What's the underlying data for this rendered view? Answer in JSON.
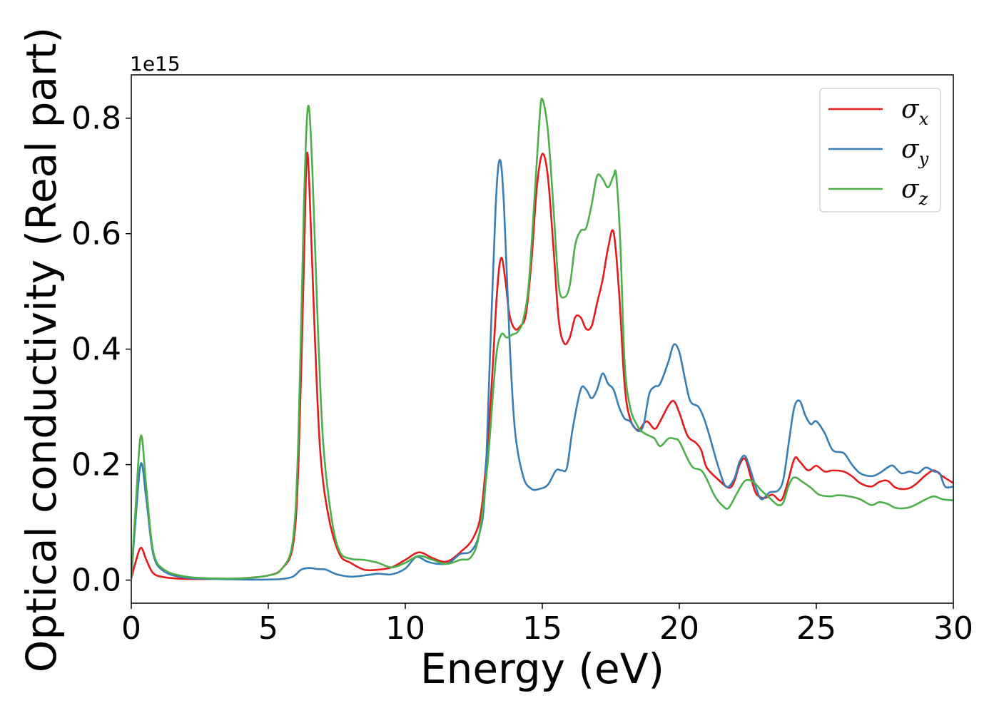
{
  "chart_data": {
    "type": "line",
    "title": "",
    "xlabel": "Energy (eV)",
    "ylabel": "Optical conductivity (Real part)",
    "y_offset_label": "1e15",
    "xlim": [
      0,
      30
    ],
    "ylim": [
      -0.04,
      0.875
    ],
    "x_ticks": [
      "0",
      "5",
      "10",
      "15",
      "20",
      "25",
      "30"
    ],
    "y_ticks": [
      "0.0",
      "0.2",
      "0.4",
      "0.6",
      "0.8"
    ],
    "grid": false,
    "legend_position": "top-right",
    "series": [
      {
        "name": "σx",
        "symbol": "σ",
        "subscript": "x",
        "color": "#e41a1c",
        "points": [
          [
            0,
            0.003
          ],
          [
            0.15,
            0.03
          ],
          [
            0.35,
            0.056
          ],
          [
            0.55,
            0.035
          ],
          [
            0.8,
            0.012
          ],
          [
            1.2,
            0.005
          ],
          [
            2,
            0.002
          ],
          [
            3,
            0.002
          ],
          [
            4,
            0.003
          ],
          [
            5,
            0.008
          ],
          [
            5.5,
            0.02
          ],
          [
            5.9,
            0.06
          ],
          [
            6.1,
            0.2
          ],
          [
            6.3,
            0.55
          ],
          [
            6.4,
            0.732
          ],
          [
            6.5,
            0.68
          ],
          [
            6.7,
            0.42
          ],
          [
            6.9,
            0.22
          ],
          [
            7.2,
            0.11
          ],
          [
            7.6,
            0.045
          ],
          [
            8,
            0.03
          ],
          [
            8.5,
            0.018
          ],
          [
            9,
            0.018
          ],
          [
            9.5,
            0.022
          ],
          [
            10,
            0.035
          ],
          [
            10.5,
            0.048
          ],
          [
            11,
            0.038
          ],
          [
            11.5,
            0.032
          ],
          [
            12,
            0.048
          ],
          [
            12.5,
            0.075
          ],
          [
            12.8,
            0.13
          ],
          [
            13.1,
            0.3
          ],
          [
            13.35,
            0.5
          ],
          [
            13.5,
            0.558
          ],
          [
            13.65,
            0.52
          ],
          [
            13.8,
            0.46
          ],
          [
            14,
            0.435
          ],
          [
            14.2,
            0.44
          ],
          [
            14.4,
            0.46
          ],
          [
            14.6,
            0.55
          ],
          [
            14.8,
            0.68
          ],
          [
            15,
            0.738
          ],
          [
            15.2,
            0.7
          ],
          [
            15.4,
            0.58
          ],
          [
            15.6,
            0.45
          ],
          [
            15.8,
            0.41
          ],
          [
            16,
            0.42
          ],
          [
            16.2,
            0.455
          ],
          [
            16.4,
            0.455
          ],
          [
            16.6,
            0.435
          ],
          [
            16.8,
            0.44
          ],
          [
            17,
            0.48
          ],
          [
            17.2,
            0.52
          ],
          [
            17.4,
            0.575
          ],
          [
            17.6,
            0.603
          ],
          [
            17.8,
            0.5
          ],
          [
            18,
            0.34
          ],
          [
            18.2,
            0.28
          ],
          [
            18.5,
            0.26
          ],
          [
            18.8,
            0.275
          ],
          [
            19.1,
            0.262
          ],
          [
            19.3,
            0.275
          ],
          [
            19.6,
            0.302
          ],
          [
            19.8,
            0.31
          ],
          [
            20,
            0.29
          ],
          [
            20.3,
            0.25
          ],
          [
            20.6,
            0.238
          ],
          [
            20.8,
            0.225
          ],
          [
            21,
            0.195
          ],
          [
            21.4,
            0.175
          ],
          [
            21.8,
            0.16
          ],
          [
            22,
            0.17
          ],
          [
            22.2,
            0.2
          ],
          [
            22.4,
            0.21
          ],
          [
            22.6,
            0.18
          ],
          [
            22.8,
            0.15
          ],
          [
            23.1,
            0.142
          ],
          [
            23.4,
            0.148
          ],
          [
            23.7,
            0.138
          ],
          [
            23.9,
            0.16
          ],
          [
            24.2,
            0.21
          ],
          [
            24.4,
            0.205
          ],
          [
            24.7,
            0.19
          ],
          [
            25,
            0.198
          ],
          [
            25.3,
            0.188
          ],
          [
            25.6,
            0.19
          ],
          [
            26,
            0.188
          ],
          [
            26.3,
            0.18
          ],
          [
            26.6,
            0.168
          ],
          [
            27,
            0.162
          ],
          [
            27.3,
            0.17
          ],
          [
            27.6,
            0.172
          ],
          [
            27.9,
            0.16
          ],
          [
            28.3,
            0.158
          ],
          [
            28.6,
            0.165
          ],
          [
            29,
            0.182
          ],
          [
            29.3,
            0.19
          ],
          [
            29.6,
            0.18
          ],
          [
            30,
            0.168
          ]
        ]
      },
      {
        "name": "σy",
        "symbol": "σ",
        "subscript": "y",
        "color": "#377eb8",
        "points": [
          [
            0,
            0.003
          ],
          [
            0.15,
            0.1
          ],
          [
            0.35,
            0.202
          ],
          [
            0.55,
            0.14
          ],
          [
            0.8,
            0.045
          ],
          [
            1.2,
            0.015
          ],
          [
            2,
            0.004
          ],
          [
            3,
            0.002
          ],
          [
            4,
            0.001
          ],
          [
            5,
            0.001
          ],
          [
            5.5,
            0.002
          ],
          [
            5.9,
            0.006
          ],
          [
            6.2,
            0.018
          ],
          [
            6.5,
            0.021
          ],
          [
            6.8,
            0.019
          ],
          [
            7.1,
            0.018
          ],
          [
            7.5,
            0.01
          ],
          [
            8,
            0.006
          ],
          [
            8.5,
            0.008
          ],
          [
            9,
            0.011
          ],
          [
            9.5,
            0.01
          ],
          [
            10,
            0.02
          ],
          [
            10.4,
            0.04
          ],
          [
            10.8,
            0.032
          ],
          [
            11.2,
            0.028
          ],
          [
            11.6,
            0.03
          ],
          [
            12,
            0.045
          ],
          [
            12.4,
            0.05
          ],
          [
            12.7,
            0.08
          ],
          [
            12.9,
            0.15
          ],
          [
            13.1,
            0.4
          ],
          [
            13.3,
            0.65
          ],
          [
            13.45,
            0.728
          ],
          [
            13.6,
            0.65
          ],
          [
            13.8,
            0.42
          ],
          [
            14,
            0.26
          ],
          [
            14.3,
            0.18
          ],
          [
            14.6,
            0.158
          ],
          [
            14.9,
            0.158
          ],
          [
            15.2,
            0.165
          ],
          [
            15.5,
            0.19
          ],
          [
            15.7,
            0.19
          ],
          [
            15.9,
            0.195
          ],
          [
            16.1,
            0.26
          ],
          [
            16.4,
            0.33
          ],
          [
            16.6,
            0.33
          ],
          [
            16.8,
            0.315
          ],
          [
            17,
            0.33
          ],
          [
            17.2,
            0.358
          ],
          [
            17.4,
            0.34
          ],
          [
            17.6,
            0.33
          ],
          [
            17.8,
            0.3
          ],
          [
            18,
            0.28
          ],
          [
            18.2,
            0.275
          ],
          [
            18.5,
            0.258
          ],
          [
            18.7,
            0.27
          ],
          [
            18.9,
            0.322
          ],
          [
            19.1,
            0.335
          ],
          [
            19.3,
            0.34
          ],
          [
            19.6,
            0.378
          ],
          [
            19.8,
            0.408
          ],
          [
            20,
            0.395
          ],
          [
            20.2,
            0.35
          ],
          [
            20.4,
            0.31
          ],
          [
            20.7,
            0.3
          ],
          [
            20.9,
            0.28
          ],
          [
            21.1,
            0.25
          ],
          [
            21.4,
            0.2
          ],
          [
            21.7,
            0.162
          ],
          [
            22,
            0.175
          ],
          [
            22.2,
            0.205
          ],
          [
            22.4,
            0.215
          ],
          [
            22.6,
            0.19
          ],
          [
            22.8,
            0.16
          ],
          [
            23,
            0.14
          ],
          [
            23.3,
            0.152
          ],
          [
            23.6,
            0.155
          ],
          [
            23.8,
            0.175
          ],
          [
            24,
            0.24
          ],
          [
            24.2,
            0.3
          ],
          [
            24.4,
            0.31
          ],
          [
            24.6,
            0.285
          ],
          [
            24.8,
            0.27
          ],
          [
            25,
            0.275
          ],
          [
            25.3,
            0.255
          ],
          [
            25.6,
            0.225
          ],
          [
            26,
            0.22
          ],
          [
            26.3,
            0.2
          ],
          [
            26.6,
            0.185
          ],
          [
            27,
            0.18
          ],
          [
            27.3,
            0.185
          ],
          [
            27.6,
            0.195
          ],
          [
            27.8,
            0.198
          ],
          [
            28.1,
            0.185
          ],
          [
            28.4,
            0.188
          ],
          [
            28.7,
            0.185
          ],
          [
            29,
            0.195
          ],
          [
            29.3,
            0.188
          ],
          [
            29.5,
            0.185
          ],
          [
            29.7,
            0.162
          ],
          [
            30,
            0.162
          ]
        ]
      },
      {
        "name": "σz",
        "symbol": "σ",
        "subscript": "z",
        "color": "#4daf4a",
        "points": [
          [
            0,
            0.003
          ],
          [
            0.15,
            0.12
          ],
          [
            0.35,
            0.25
          ],
          [
            0.55,
            0.16
          ],
          [
            0.8,
            0.05
          ],
          [
            1.2,
            0.018
          ],
          [
            2,
            0.006
          ],
          [
            3,
            0.003
          ],
          [
            4,
            0.003
          ],
          [
            5,
            0.008
          ],
          [
            5.5,
            0.02
          ],
          [
            5.9,
            0.07
          ],
          [
            6.1,
            0.25
          ],
          [
            6.3,
            0.65
          ],
          [
            6.45,
            0.82
          ],
          [
            6.6,
            0.72
          ],
          [
            6.8,
            0.45
          ],
          [
            7,
            0.24
          ],
          [
            7.3,
            0.11
          ],
          [
            7.6,
            0.05
          ],
          [
            8,
            0.037
          ],
          [
            8.5,
            0.035
          ],
          [
            9,
            0.03
          ],
          [
            9.5,
            0.022
          ],
          [
            10,
            0.03
          ],
          [
            10.5,
            0.042
          ],
          [
            11,
            0.035
          ],
          [
            11.5,
            0.028
          ],
          [
            12,
            0.035
          ],
          [
            12.4,
            0.04
          ],
          [
            12.7,
            0.08
          ],
          [
            13,
            0.2
          ],
          [
            13.3,
            0.38
          ],
          [
            13.5,
            0.425
          ],
          [
            13.7,
            0.42
          ],
          [
            13.9,
            0.425
          ],
          [
            14.1,
            0.43
          ],
          [
            14.3,
            0.45
          ],
          [
            14.5,
            0.51
          ],
          [
            14.7,
            0.65
          ],
          [
            14.9,
            0.8
          ],
          [
            15,
            0.833
          ],
          [
            15.2,
            0.78
          ],
          [
            15.4,
            0.65
          ],
          [
            15.6,
            0.51
          ],
          [
            15.8,
            0.49
          ],
          [
            16,
            0.51
          ],
          [
            16.2,
            0.58
          ],
          [
            16.4,
            0.605
          ],
          [
            16.6,
            0.61
          ],
          [
            16.8,
            0.65
          ],
          [
            17,
            0.7
          ],
          [
            17.2,
            0.695
          ],
          [
            17.4,
            0.68
          ],
          [
            17.6,
            0.7
          ],
          [
            17.7,
            0.7
          ],
          [
            17.85,
            0.58
          ],
          [
            18,
            0.38
          ],
          [
            18.2,
            0.3
          ],
          [
            18.5,
            0.265
          ],
          [
            18.7,
            0.255
          ],
          [
            18.9,
            0.25
          ],
          [
            19.1,
            0.245
          ],
          [
            19.3,
            0.232
          ],
          [
            19.6,
            0.245
          ],
          [
            19.8,
            0.245
          ],
          [
            20,
            0.24
          ],
          [
            20.3,
            0.21
          ],
          [
            20.5,
            0.195
          ],
          [
            20.8,
            0.19
          ],
          [
            21,
            0.175
          ],
          [
            21.3,
            0.145
          ],
          [
            21.6,
            0.128
          ],
          [
            21.8,
            0.125
          ],
          [
            22.1,
            0.15
          ],
          [
            22.4,
            0.172
          ],
          [
            22.7,
            0.17
          ],
          [
            23,
            0.155
          ],
          [
            23.3,
            0.142
          ],
          [
            23.6,
            0.13
          ],
          [
            23.8,
            0.135
          ],
          [
            24,
            0.165
          ],
          [
            24.2,
            0.178
          ],
          [
            24.5,
            0.17
          ],
          [
            24.8,
            0.16
          ],
          [
            25.1,
            0.148
          ],
          [
            25.5,
            0.145
          ],
          [
            25.8,
            0.147
          ],
          [
            26.2,
            0.145
          ],
          [
            26.6,
            0.14
          ],
          [
            27,
            0.13
          ],
          [
            27.3,
            0.135
          ],
          [
            27.6,
            0.132
          ],
          [
            27.9,
            0.125
          ],
          [
            28.3,
            0.125
          ],
          [
            28.6,
            0.13
          ],
          [
            29,
            0.14
          ],
          [
            29.3,
            0.145
          ],
          [
            29.6,
            0.14
          ],
          [
            30,
            0.138
          ]
        ]
      }
    ]
  }
}
